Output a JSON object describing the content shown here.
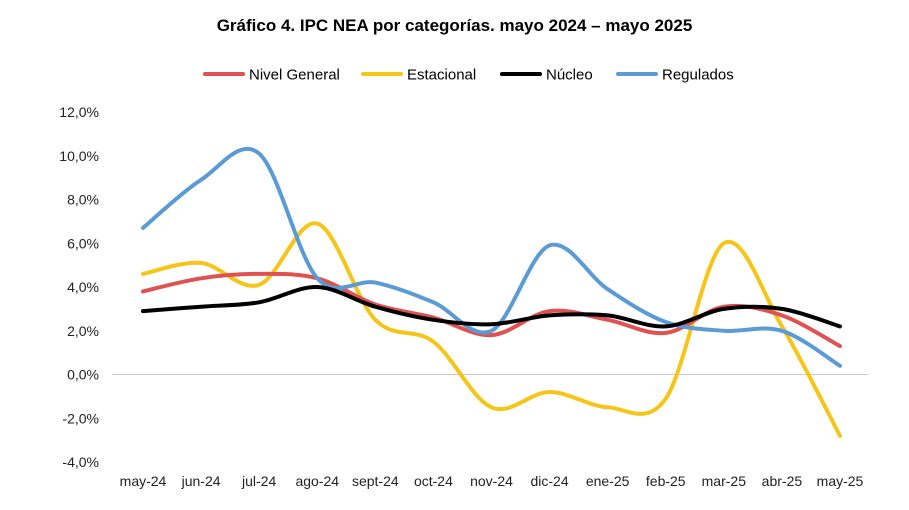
{
  "chart_data": {
    "type": "line",
    "title": "Gráfico 4. IPC NEA por categorías. mayo 2024 – mayo 2025",
    "categories": [
      "may-24",
      "jun-24",
      "jul-24",
      "ago-24",
      "sept-24",
      "oct-24",
      "nov-24",
      "dic-24",
      "ene-25",
      "feb-25",
      "mar-25",
      "abr-25",
      "may-25"
    ],
    "ylim": [
      -4,
      12
    ],
    "yticks": [
      -4,
      -2,
      0,
      2,
      4,
      6,
      8,
      10,
      12
    ],
    "ytick_labels": [
      "-4,0%",
      "-2,0%",
      "0,0%",
      "2,0%",
      "4,0%",
      "6,0%",
      "8,0%",
      "10,0%",
      "12,0%"
    ],
    "grid": false,
    "legend_position": "top",
    "series": [
      {
        "name": "Nivel General",
        "color": "#e05252",
        "values": [
          3.8,
          4.4,
          4.6,
          4.4,
          3.2,
          2.6,
          1.8,
          2.9,
          2.5,
          1.9,
          3.1,
          2.7,
          1.3
        ]
      },
      {
        "name": "Estacional",
        "color": "#f5c518",
        "values": [
          4.6,
          5.1,
          4.1,
          6.9,
          2.5,
          1.5,
          -1.5,
          -0.8,
          -1.5,
          -1.1,
          6.0,
          2.2,
          -2.8
        ]
      },
      {
        "name": "Núcleo",
        "color": "#000000",
        "values": [
          2.9,
          3.1,
          3.3,
          4.0,
          3.1,
          2.5,
          2.3,
          2.7,
          2.7,
          2.2,
          3.0,
          3.0,
          2.2
        ]
      },
      {
        "name": "Regulados",
        "color": "#5b9bd5",
        "values": [
          6.7,
          8.9,
          10.1,
          4.4,
          4.2,
          3.3,
          2.0,
          5.9,
          3.9,
          2.4,
          2.0,
          2.0,
          0.4
        ]
      }
    ]
  }
}
